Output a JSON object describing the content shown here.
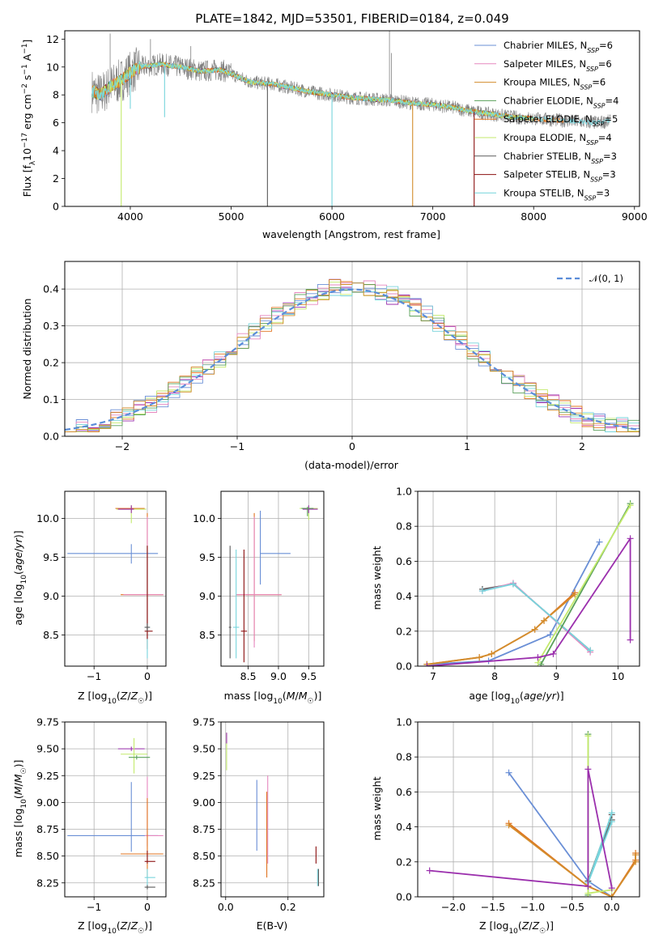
{
  "figure_title": "PLATE=1842, MJD=53501, FIBERID=0184, z=0.049",
  "colors": {
    "models": [
      "#6a8fd6",
      "#e687bf",
      "#d38d2d",
      "#5aa05a",
      "#e0731f",
      "#c3ea6c",
      "#5a5a5a",
      "#8b1010",
      "#77d4dc"
    ],
    "observed": "#808080",
    "purple": "#9b2fad",
    "normal": "#5b8dd9",
    "grid": "#b0b0b0"
  },
  "chart_data": [
    {
      "name": "spectrum",
      "type": "line",
      "xlabel": "wavelength [Angstrom, rest frame]",
      "ylabel": "Flux [f_λ10^-17 erg cm^-2 s^-1 A^-1]",
      "xlim": [
        3350,
        9050
      ],
      "ylim": [
        0,
        12.6
      ],
      "xticks": [
        4000,
        5000,
        6000,
        7000,
        8000,
        9000
      ],
      "yticks": [
        0,
        2,
        4,
        6,
        8,
        10,
        12
      ],
      "xtick_labels": [
        "4000",
        "5000",
        "6000",
        "7000",
        "8000",
        "9000"
      ],
      "ytick_labels": [
        "0",
        "2",
        "4",
        "6",
        "8",
        "10",
        "12"
      ],
      "grid": false,
      "legend_position": "top-right",
      "legend": [
        {
          "label": "Chabrier MILES, N",
          "sub": "SSP",
          "tail": "=6"
        },
        {
          "label": "Salpeter MILES, N",
          "sub": "SSP",
          "tail": "=6"
        },
        {
          "label": "Kroupa MILES, N",
          "sub": "SSP",
          "tail": "=6"
        },
        {
          "label": "Chabrier ELODIE, N",
          "sub": "SSP",
          "tail": "=4"
        },
        {
          "label": "Salpeter ELODIE, N",
          "sub": "SSP",
          "tail": "=5"
        },
        {
          "label": "Kroupa ELODIE, N",
          "sub": "SSP",
          "tail": "=4"
        },
        {
          "label": "Chabrier STELIB, N",
          "sub": "SSP",
          "tail": "=3"
        },
        {
          "label": "Salpeter STELIB, N",
          "sub": "SSP",
          "tail": "=3"
        },
        {
          "label": "Kroupa STELIB, N",
          "sub": "SSP",
          "tail": "=3"
        }
      ],
      "continuum": [
        [
          3620,
          8.3
        ],
        [
          3700,
          8.0
        ],
        [
          3800,
          8.6
        ],
        [
          3900,
          9.0
        ],
        [
          4000,
          9.6
        ],
        [
          4100,
          10.0
        ],
        [
          4300,
          10.2
        ],
        [
          4500,
          10.0
        ],
        [
          4700,
          9.7
        ],
        [
          4900,
          9.8
        ],
        [
          5000,
          9.5
        ],
        [
          5200,
          8.9
        ],
        [
          5400,
          8.8
        ],
        [
          5600,
          8.5
        ],
        [
          5800,
          8.2
        ],
        [
          6000,
          8.0
        ],
        [
          6200,
          7.8
        ],
        [
          6400,
          7.7
        ],
        [
          6600,
          7.6
        ],
        [
          6800,
          7.4
        ],
        [
          7000,
          7.3
        ],
        [
          7200,
          7.1
        ],
        [
          7400,
          6.8
        ],
        [
          7600,
          6.6
        ],
        [
          7800,
          6.4
        ],
        [
          8000,
          6.3
        ],
        [
          8200,
          6.2
        ],
        [
          8400,
          6.1
        ],
        [
          8600,
          6.0
        ],
        [
          8760,
          6.1
        ]
      ],
      "drops": [
        [
          3910,
          0
        ],
        [
          4000,
          7.0
        ],
        [
          4340,
          6.4
        ],
        [
          5360,
          0
        ],
        [
          6000,
          0
        ],
        [
          6800,
          0
        ],
        [
          7410,
          0
        ]
      ],
      "spikes": [
        [
          3800,
          12.4
        ],
        [
          4200,
          12.0
        ],
        [
          4600,
          11.5
        ],
        [
          6570,
          12.6
        ],
        [
          6590,
          11.0
        ]
      ]
    },
    {
      "name": "residuals",
      "type": "histogram",
      "xlabel": "(data-model)/error",
      "ylabel": "Normed distribution",
      "xlim": [
        -2.5,
        2.5
      ],
      "ylim": [
        0,
        0.475
      ],
      "xticks": [
        -2,
        -1,
        0,
        1,
        2
      ],
      "yticks": [
        0.0,
        0.1,
        0.2,
        0.3,
        0.4
      ],
      "xtick_labels": [
        "−2",
        "−1",
        "0",
        "1",
        "2"
      ],
      "ytick_labels": [
        "0.0",
        "0.1",
        "0.2",
        "0.3",
        "0.4"
      ],
      "grid": true,
      "legend_position": "top-right",
      "legend": [
        "𝒩(0, 1)"
      ],
      "bin_width": 0.1
    },
    {
      "name": "age_vs_Z",
      "type": "scatter",
      "xlabel": "Z [log₁₀(Z/Z☉)]",
      "ylabel": "age [log₁₀(age/yr)]",
      "xlim": [
        -1.55,
        0.35
      ],
      "ylim": [
        8.1,
        10.35
      ],
      "xticks": [
        -1,
        0
      ],
      "yticks": [
        8.5,
        9.0,
        9.5,
        10.0
      ],
      "xtick_labels": [
        "−1",
        "0"
      ],
      "ytick_labels": [
        "8.5",
        "9.0",
        "9.5",
        "10.0"
      ],
      "grid": true
    },
    {
      "name": "age_vs_mass",
      "type": "scatter",
      "xlabel": "mass [log₁₀(M/M☉)]",
      "ylabel": "",
      "xlim": [
        8.05,
        9.75
      ],
      "ylim": [
        8.1,
        10.35
      ],
      "xticks": [
        8.5,
        9.0,
        9.5
      ],
      "yticks": [
        8.5,
        9.0,
        9.5,
        10.0
      ],
      "xtick_labels": [
        "8.5",
        "9.0",
        "9.5"
      ],
      "ytick_labels": [
        "8.5",
        "9.0",
        "9.5",
        "10.0"
      ],
      "grid": true
    },
    {
      "name": "massweight_vs_age",
      "type": "line",
      "xlabel": "age [log₁₀(age/yr)]",
      "ylabel": "mass weight",
      "xlim": [
        6.75,
        10.35
      ],
      "ylim": [
        0,
        1.0
      ],
      "xticks": [
        7,
        8,
        9,
        10
      ],
      "yticks": [
        0.0,
        0.2,
        0.4,
        0.6,
        0.8,
        1.0
      ],
      "xtick_labels": [
        "7",
        "8",
        "9",
        "10"
      ],
      "ytick_labels": [
        "0.0",
        "0.2",
        "0.4",
        "0.6",
        "0.8",
        "1.0"
      ],
      "grid": true,
      "series": [
        {
          "color": 0,
          "points": [
            [
              6.9,
              0.01
            ],
            [
              7.9,
              0.03
            ],
            [
              8.9,
              0.18
            ],
            [
              9.7,
              0.71
            ]
          ]
        },
        {
          "color": 4,
          "points": [
            [
              6.9,
              0.01
            ],
            [
              7.75,
              0.05
            ],
            [
              7.95,
              0.07
            ],
            [
              8.65,
              0.21
            ],
            [
              8.8,
              0.26
            ],
            [
              9.3,
              0.42
            ]
          ]
        },
        {
          "color": 2,
          "points": [
            [
              6.9,
              0.01
            ],
            [
              7.75,
              0.05
            ],
            [
              7.95,
              0.07
            ],
            [
              8.65,
              0.21
            ],
            [
              8.8,
              0.26
            ],
            [
              9.3,
              0.41
            ]
          ]
        },
        {
          "color": 6,
          "points": [
            [
              7.8,
              0.44
            ],
            [
              8.3,
              0.47
            ],
            [
              9.55,
              0.09
            ]
          ]
        },
        {
          "color": 1,
          "points": [
            [
              7.8,
              0.43
            ],
            [
              8.3,
              0.475
            ],
            [
              9.55,
              0.08
            ]
          ]
        },
        {
          "color": 8,
          "points": [
            [
              7.8,
              0.43
            ],
            [
              8.3,
              0.47
            ],
            [
              9.55,
              0.09
            ]
          ]
        },
        {
          "color": 3,
          "points": [
            [
              8.75,
              0.01
            ],
            [
              10.2,
              0.93
            ]
          ]
        },
        {
          "color": 5,
          "points": [
            [
              8.7,
              0.02
            ],
            [
              10.2,
              0.92
            ]
          ]
        },
        {
          "color": "purple",
          "points": [
            [
              6.9,
              0.0
            ],
            [
              8.7,
              0.05
            ],
            [
              8.95,
              0.07
            ],
            [
              10.2,
              0.73
            ],
            [
              10.2,
              0.15
            ]
          ]
        }
      ]
    },
    {
      "name": "mass_vs_Z",
      "type": "scatter",
      "xlabel": "Z [log₁₀(Z/Z☉)]",
      "ylabel": "mass [log₁₀(M/M☉)]",
      "xlim": [
        -1.55,
        0.35
      ],
      "ylim": [
        8.12,
        9.75
      ],
      "xticks": [
        -1,
        0
      ],
      "yticks": [
        8.25,
        8.5,
        8.75,
        9.0,
        9.25,
        9.5,
        9.75
      ],
      "xtick_labels": [
        "−1",
        "0"
      ],
      "ytick_labels": [
        "8.25",
        "8.50",
        "8.75",
        "9.00",
        "9.25",
        "9.50",
        "9.75"
      ],
      "grid": true
    },
    {
      "name": "mass_vs_EBV",
      "type": "scatter",
      "xlabel": "E(B-V)",
      "ylabel": "",
      "xlim": [
        -0.015,
        0.315
      ],
      "ylim": [
        8.12,
        9.75
      ],
      "xticks": [
        0.0,
        0.2
      ],
      "yticks": [
        8.25,
        8.5,
        8.75,
        9.0,
        9.25,
        9.5,
        9.75
      ],
      "xtick_labels": [
        "0.0",
        "0.2"
      ],
      "ytick_labels": [
        "8.25",
        "8.50",
        "8.75",
        "9.00",
        "9.25",
        "9.50",
        "9.75"
      ],
      "grid": true
    },
    {
      "name": "massweight_vs_Z",
      "type": "line",
      "xlabel": "Z [log₁₀(Z/Z☉)]",
      "ylabel": "mass weight",
      "xlim": [
        -2.45,
        0.35
      ],
      "ylim": [
        0,
        1.0
      ],
      "xticks": [
        -2.0,
        -1.5,
        -1.0,
        -0.5,
        0.0
      ],
      "yticks": [
        0.0,
        0.2,
        0.4,
        0.6,
        0.8,
        1.0
      ],
      "xtick_labels": [
        "−2.0",
        "−1.5",
        "−1.0",
        "−0.5",
        "0.0"
      ],
      "ytick_labels": [
        "0.0",
        "0.2",
        "0.4",
        "0.6",
        "0.8",
        "1.0"
      ],
      "grid": true,
      "series": [
        {
          "color": 0,
          "points": [
            [
              -1.3,
              0.71
            ],
            [
              -0.3,
              0.09
            ],
            [
              0.0,
              0.0
            ]
          ]
        },
        {
          "color": 4,
          "points": [
            [
              -1.3,
              0.42
            ],
            [
              -0.3,
              0.06
            ],
            [
              0.0,
              0.0
            ],
            [
              0.3,
              0.21
            ],
            [
              0.3,
              0.25
            ]
          ]
        },
        {
          "color": 2,
          "points": [
            [
              -1.3,
              0.41
            ],
            [
              -0.3,
              0.06
            ],
            [
              0.0,
              0.0
            ],
            [
              0.3,
              0.2
            ],
            [
              0.3,
              0.24
            ]
          ]
        },
        {
          "color": 6,
          "points": [
            [
              0.0,
              0.44
            ],
            [
              -0.3,
              0.09
            ],
            [
              0.0,
              0.47
            ]
          ]
        },
        {
          "color": 8,
          "points": [
            [
              0.0,
              0.43
            ],
            [
              -0.3,
              0.08
            ],
            [
              0.0,
              0.48
            ]
          ]
        },
        {
          "color": 3,
          "points": [
            [
              -0.3,
              0.93
            ],
            [
              -0.3,
              0.01
            ]
          ]
        },
        {
          "color": 5,
          "points": [
            [
              -0.3,
              0.92
            ],
            [
              -0.3,
              0.02
            ],
            [
              0.0,
              0.04
            ]
          ]
        },
        {
          "color": "purple",
          "points": [
            [
              -2.3,
              0.15
            ],
            [
              -0.3,
              0.06
            ],
            [
              -0.3,
              0.73
            ],
            [
              0.0,
              0.05
            ]
          ]
        }
      ]
    }
  ]
}
